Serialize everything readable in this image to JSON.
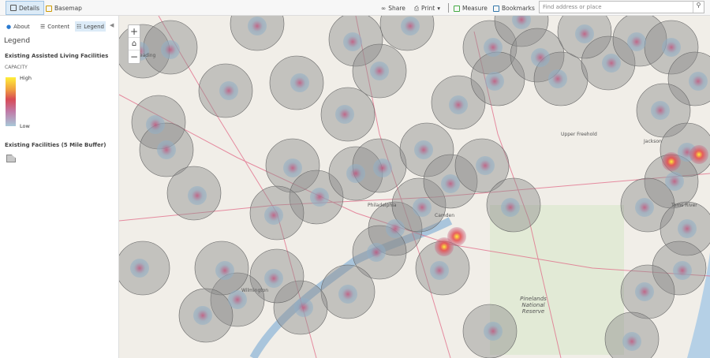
{
  "toolbar": {
    "details": "Details",
    "basemap": "Basemap",
    "share": "Share",
    "print": "Print",
    "measure": "Measure",
    "bookmarks": "Bookmarks",
    "search_placeholder": "Find address or place"
  },
  "panel": {
    "tabs": [
      "About",
      "Content",
      "Legend"
    ],
    "legend_title": "Legend",
    "layer1": "Existing Assisted Living Facilities",
    "capacity": "CAPACITY",
    "high": "High",
    "low": "Low",
    "layer2": "Existing Facilities (5 Mile Buffer)"
  },
  "colors": {
    "accent": "#dcebf7",
    "buffer": "#8c8c8c",
    "heat_low": "#a8c8d8",
    "heat_high": "#ffef3a"
  },
  "map": {
    "labels": [
      "Philadelphia",
      "Pinelands National Reserve",
      "Reading",
      "Upper Freehold",
      "Jackson",
      "Toms River",
      "Wilmington",
      "Camden"
    ]
  }
}
